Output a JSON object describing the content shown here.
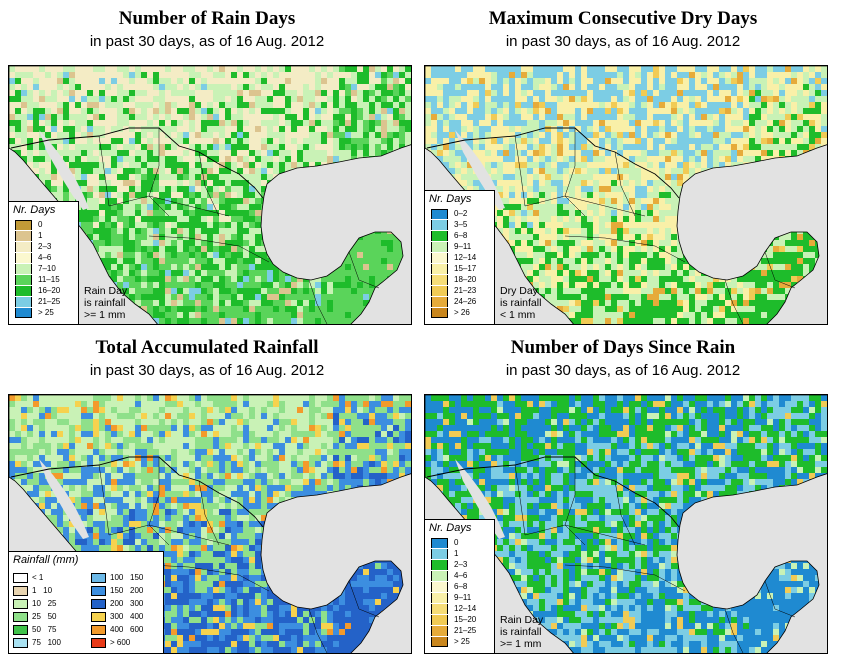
{
  "panels": [
    {
      "id": "rain-days",
      "title": "Number of Rain Days",
      "subtitle": "in past 30 days, as of  16 Aug. 2012",
      "legend_title": "Nr. Days",
      "legend": [
        {
          "label": "0",
          "color": "#c19a37"
        },
        {
          "label": "1",
          "color": "#dcc48f"
        },
        {
          "label": "2–3",
          "color": "#f4ecc5"
        },
        {
          "label": "4–6",
          "color": "#fbf8cf"
        },
        {
          "label": "7–10",
          "color": "#c9f2b6"
        },
        {
          "label": "11–15",
          "color": "#5ad45a"
        },
        {
          "label": "16–20",
          "color": "#1ebc2b"
        },
        {
          "label": "21–25",
          "color": "#7ccde4"
        },
        {
          "label": "> 25",
          "color": "#1f8ad1"
        }
      ],
      "note": [
        "Rain Day",
        "is rainfall",
        ">= 1 mm"
      ],
      "palette": {
        "land_low": "#f4ecc5",
        "land_mid": "#c9f2b6",
        "land_high": "#1ebc2b",
        "land_top": "#5ad45a",
        "accent": "#dcc48f",
        "accent2": "#7ccde4"
      }
    },
    {
      "id": "dry-days",
      "title": "Maximum Consecutive Dry Days",
      "subtitle": "in past 30 days, as of  16 Aug. 2012",
      "legend_title": "Nr. Days",
      "legend": [
        {
          "label": "0–2",
          "color": "#1f8ad1"
        },
        {
          "label": "3–5",
          "color": "#7ccde4"
        },
        {
          "label": "6–8",
          "color": "#1ebc2b"
        },
        {
          "label": "9–11",
          "color": "#c9f2b6"
        },
        {
          "label": "12–14",
          "color": "#fbf8cf"
        },
        {
          "label": "15–17",
          "color": "#f9f0a8"
        },
        {
          "label": "18–20",
          "color": "#f6dd78"
        },
        {
          "label": "21–23",
          "color": "#f1cb55"
        },
        {
          "label": "24–26",
          "color": "#e6ab3a"
        },
        {
          "label": "> 26",
          "color": "#c9861d"
        }
      ],
      "note": [
        "Dry Day",
        "is rainfall",
        "< 1 mm"
      ],
      "palette": {
        "land_low": "#7ccde4",
        "land_mid": "#f9f0a8",
        "land_high": "#c9f2b6",
        "land_top": "#1ebc2b",
        "accent": "#e6ab3a",
        "accent2": "#f1cb55"
      }
    },
    {
      "id": "total-rain",
      "title": "Total Accumulated Rainfall",
      "subtitle": "in past 30 days, as of  16 Aug. 2012",
      "legend_title": "Rainfall (mm)",
      "legend_cols": [
        [
          {
            "label": "< 1",
            "color": "#ffffff"
          },
          {
            "label": "1   10",
            "color": "#e8d4b0"
          },
          {
            "label": "10   25",
            "color": "#c9f2b6"
          },
          {
            "label": "25   50",
            "color": "#8fe08a"
          },
          {
            "label": "50   75",
            "color": "#3fc24a"
          },
          {
            "label": "75   100",
            "color": "#a9e2f2"
          }
        ],
        [
          {
            "label": "100   150",
            "color": "#6cb9e8"
          },
          {
            "label": "150   200",
            "color": "#3c8ee0"
          },
          {
            "label": "200   300",
            "color": "#2462c8"
          },
          {
            "label": "300   400",
            "color": "#f6d24e"
          },
          {
            "label": "400   600",
            "color": "#f39a2b"
          },
          {
            "label": "> 600",
            "color": "#e83a18"
          }
        ]
      ],
      "palette": {
        "land_low": "#c9f2b6",
        "land_mid": "#8fe08a",
        "land_high": "#3c8ee0",
        "land_top": "#2462c8",
        "accent": "#f6d24e",
        "accent2": "#f39a2b"
      }
    },
    {
      "id": "since-rain",
      "title": "Number of Days Since Rain",
      "subtitle": "in past 30 days, as of  16 Aug. 2012",
      "legend_title": "Nr. Days",
      "legend": [
        {
          "label": "0",
          "color": "#1f8ad1"
        },
        {
          "label": "1",
          "color": "#7ccde4"
        },
        {
          "label": "2–3",
          "color": "#1ebc2b"
        },
        {
          "label": "4–6",
          "color": "#c9f2b6"
        },
        {
          "label": "6–8",
          "color": "#fbf8cf"
        },
        {
          "label": "9–11",
          "color": "#f9f0a8"
        },
        {
          "label": "12–14",
          "color": "#f6dd78"
        },
        {
          "label": "15–20",
          "color": "#f1cb55"
        },
        {
          "label": "21–25",
          "color": "#e6ab3a"
        },
        {
          "label": "> 25",
          "color": "#c9861d"
        }
      ],
      "note": [
        "Rain Day",
        "is rainfall",
        ">= 1 mm"
      ],
      "palette": {
        "land_low": "#1f8ad1",
        "land_mid": "#1ebc2b",
        "land_high": "#7ccde4",
        "land_top": "#1f8ad1",
        "accent": "#f1cb55",
        "accent2": "#c9f2b6"
      }
    }
  ],
  "colors": {
    "ocean": "#e2e2e2",
    "border": "#000000"
  }
}
